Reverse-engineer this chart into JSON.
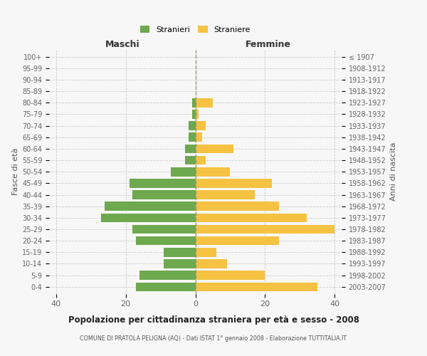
{
  "age_groups": [
    "0-4",
    "5-9",
    "10-14",
    "15-19",
    "20-24",
    "25-29",
    "30-34",
    "35-39",
    "40-44",
    "45-49",
    "50-54",
    "55-59",
    "60-64",
    "65-69",
    "70-74",
    "75-79",
    "80-84",
    "85-89",
    "90-94",
    "95-99",
    "100+"
  ],
  "birth_years": [
    "2003-2007",
    "1998-2002",
    "1993-1997",
    "1988-1992",
    "1983-1987",
    "1978-1982",
    "1973-1977",
    "1968-1972",
    "1963-1967",
    "1958-1962",
    "1953-1957",
    "1948-1952",
    "1943-1947",
    "1938-1942",
    "1933-1937",
    "1928-1932",
    "1923-1927",
    "1918-1922",
    "1913-1917",
    "1908-1912",
    "≤ 1907"
  ],
  "males": [
    17,
    16,
    9,
    9,
    17,
    18,
    27,
    26,
    18,
    19,
    7,
    3,
    3,
    2,
    2,
    1,
    1,
    0,
    0,
    0,
    0
  ],
  "females": [
    35,
    20,
    9,
    6,
    24,
    40,
    32,
    24,
    17,
    22,
    10,
    3,
    11,
    2,
    3,
    1,
    5,
    0,
    0,
    0,
    0
  ],
  "male_color": "#6ea84f",
  "female_color": "#f5c242",
  "background_color": "#f7f7f7",
  "title": "Popolazione per cittadinanza straniera per età e sesso - 2008",
  "subtitle": "COMUNE DI PRATOLA PELIGNA (AQ) - Dati ISTAT 1° gennaio 2008 - Elaborazione TUTTITALIA.IT",
  "xlabel_left": "Maschi",
  "xlabel_right": "Femmine",
  "ylabel_left": "Fasce di età",
  "ylabel_right": "Anni di nascita",
  "legend_male": "Stranieri",
  "legend_female": "Straniere",
  "xlim": 42
}
